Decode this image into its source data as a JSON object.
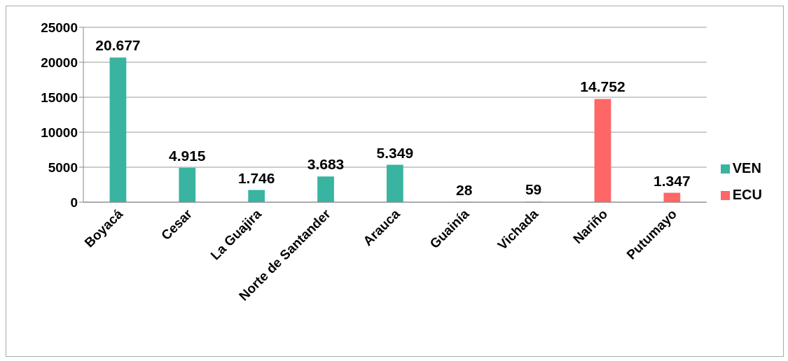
{
  "chart_data": {
    "type": "bar",
    "stacked": true,
    "categories": [
      "Boyacá",
      "Cesar",
      "La Guajira",
      "Norte de Santander",
      "Arauca",
      "Guainía",
      "Vichada",
      "Nariño",
      "Putumayo"
    ],
    "series": [
      {
        "name": "VEN",
        "color": "#38b4a0",
        "values": [
          20677,
          4915,
          1746,
          3683,
          5349,
          28,
          59,
          null,
          null
        ],
        "value_labels": [
          "20.677",
          "4.915",
          "1.746",
          "3.683",
          "5.349",
          "28",
          "59",
          null,
          null
        ]
      },
      {
        "name": "ECU",
        "color": "#ff6666",
        "values": [
          null,
          null,
          null,
          null,
          null,
          null,
          null,
          14752,
          1347
        ],
        "value_labels": [
          null,
          null,
          null,
          null,
          null,
          null,
          null,
          "14.752",
          "1.347"
        ]
      }
    ],
    "ylim": [
      0,
      25000
    ],
    "yticks": [
      0,
      5000,
      10000,
      15000,
      20000,
      25000
    ],
    "grid": "y",
    "legend": "right"
  }
}
